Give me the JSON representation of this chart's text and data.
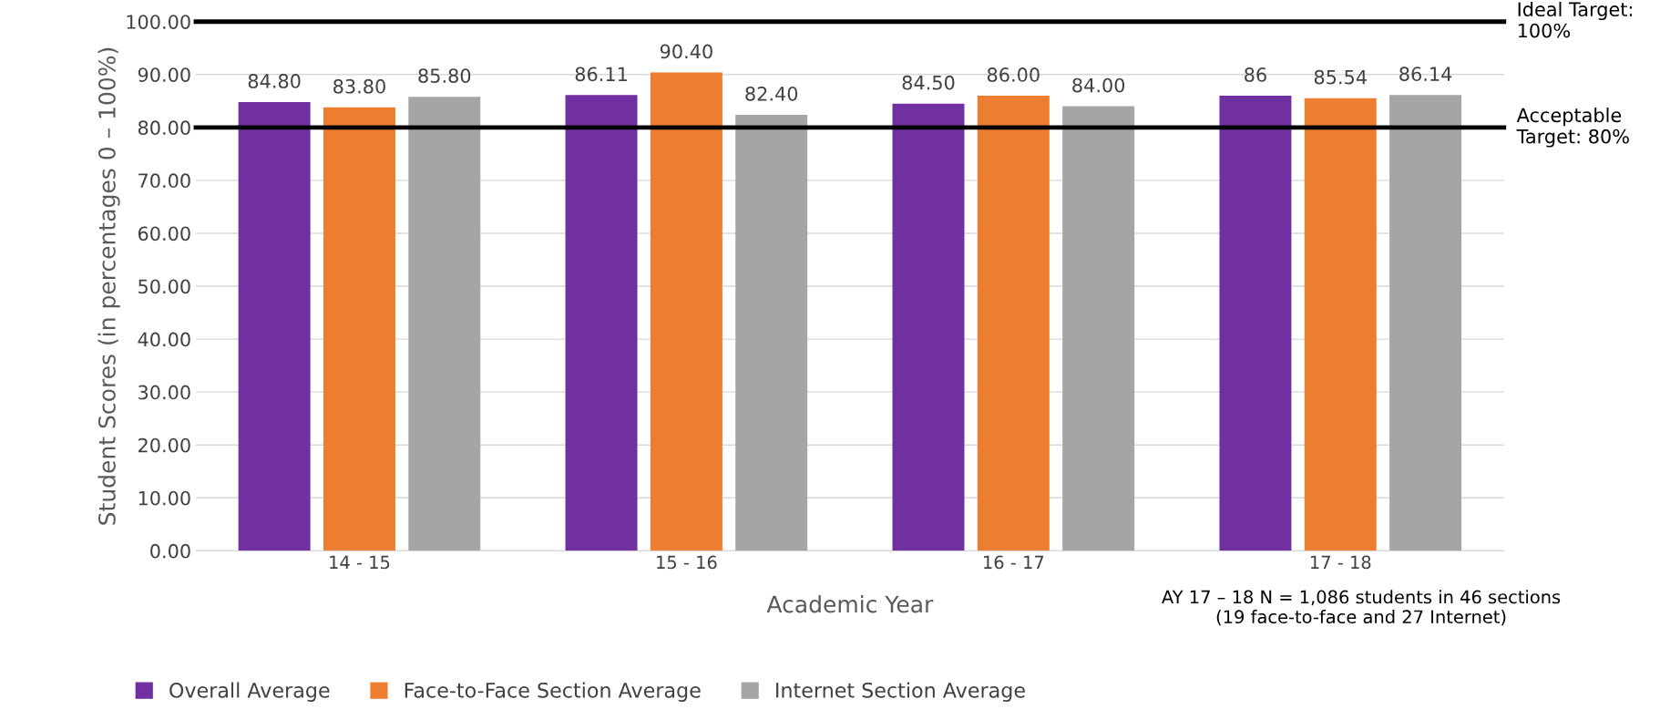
{
  "chart_data": {
    "type": "bar",
    "xlabel": "Academic Year",
    "ylabel": "Student Scores (in percentages 0 – 100%)",
    "categories": [
      "14 - 15",
      "15 - 16",
      "16 - 17",
      "17 - 18"
    ],
    "series": [
      {
        "name": "Overall Average",
        "color": "#7030a0",
        "values": [
          84.8,
          86.11,
          84.5,
          86
        ],
        "value_labels": [
          "84.80",
          "86.11",
          "84.50",
          "86"
        ]
      },
      {
        "name": "Face-to-Face Section Average",
        "color": "#ed7d31",
        "values": [
          83.8,
          90.4,
          86.0,
          85.54
        ],
        "value_labels": [
          "83.80",
          "90.40",
          "86.00",
          "85.54"
        ]
      },
      {
        "name": "Internet Section Average",
        "color": "#a5a5a5",
        "values": [
          85.8,
          82.4,
          84.0,
          86.14
        ],
        "value_labels": [
          "85.80",
          "82.40",
          "84.00",
          "86.14"
        ]
      }
    ],
    "ylim": [
      0,
      100
    ],
    "yticks": [
      {
        "value": 0,
        "label": "0.00"
      },
      {
        "value": 10,
        "label": "10.00"
      },
      {
        "value": 20,
        "label": "20.00"
      },
      {
        "value": 30,
        "label": "30.00"
      },
      {
        "value": 40,
        "label": "40.00"
      },
      {
        "value": 50,
        "label": "50.00"
      },
      {
        "value": 60,
        "label": "60.00"
      },
      {
        "value": 70,
        "label": "70.00"
      },
      {
        "value": 80,
        "label": "80.00"
      },
      {
        "value": 90,
        "label": "90.00"
      },
      {
        "value": 100,
        "label": "100.00"
      }
    ],
    "ref_lines": [
      {
        "axis": "y",
        "value": 100,
        "label": "Ideal Target:\n100%",
        "color": "#000000"
      },
      {
        "axis": "y",
        "value": 80,
        "label": "Acceptable\nTarget: 80%",
        "color": "#000000"
      }
    ],
    "annotations": [
      "AY 17 – 18 N = 1,086 students in 46 sections\n(19 face-to-face and 27 Internet)"
    ],
    "grid": "y",
    "legend": "bottom"
  }
}
